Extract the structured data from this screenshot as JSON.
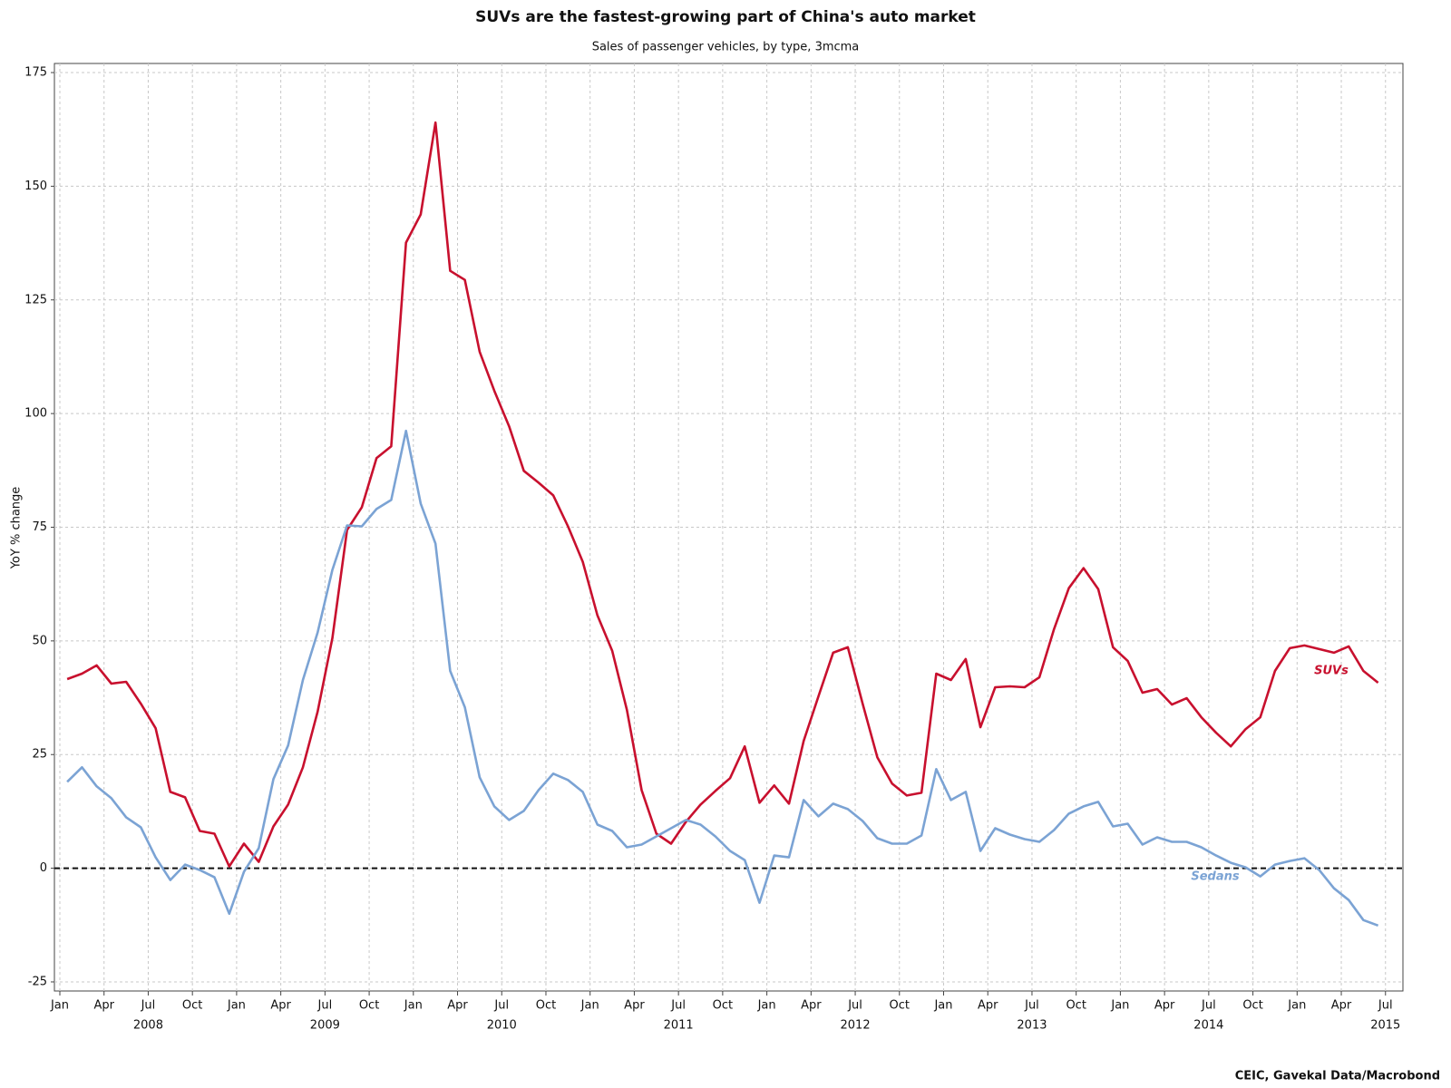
{
  "chart_data": {
    "type": "line",
    "title": "SUVs are the fastest-growing part of China's auto market",
    "subtitle": "Sales of passenger vehicles, by type, 3mcma",
    "y_label": "YoY % change",
    "source": "CEIC, Gavekal Data/Macrobond",
    "x": [
      "2008-01",
      "2008-02",
      "2008-03",
      "2008-04",
      "2008-05",
      "2008-06",
      "2008-07",
      "2008-08",
      "2008-09",
      "2008-10",
      "2008-11",
      "2008-12",
      "2009-01",
      "2009-02",
      "2009-03",
      "2009-04",
      "2009-05",
      "2009-06",
      "2009-07",
      "2009-08",
      "2009-09",
      "2009-10",
      "2009-11",
      "2009-12",
      "2010-01",
      "2010-02",
      "2010-03",
      "2010-04",
      "2010-05",
      "2010-06",
      "2010-07",
      "2010-08",
      "2010-09",
      "2010-10",
      "2010-11",
      "2010-12",
      "2011-01",
      "2011-02",
      "2011-03",
      "2011-04",
      "2011-05",
      "2011-06",
      "2011-07",
      "2011-08",
      "2011-09",
      "2011-10",
      "2011-11",
      "2011-12",
      "2012-01",
      "2012-02",
      "2012-03",
      "2012-04",
      "2012-05",
      "2012-06",
      "2012-07",
      "2012-08",
      "2012-09",
      "2012-10",
      "2012-11",
      "2012-12",
      "2013-01",
      "2013-02",
      "2013-03",
      "2013-04",
      "2013-05",
      "2013-06",
      "2013-07",
      "2013-08",
      "2013-09",
      "2013-10",
      "2013-11",
      "2013-12",
      "2014-01",
      "2014-02",
      "2014-03",
      "2014-04",
      "2014-05",
      "2014-06",
      "2014-07",
      "2014-08",
      "2014-09",
      "2014-10",
      "2014-11",
      "2014-12",
      "2015-01",
      "2015-02",
      "2015-03",
      "2015-04",
      "2015-05",
      "2015-06"
    ],
    "series": [
      {
        "name": "SUVs",
        "color": "#c8102e",
        "values": [
          41.6,
          42.8,
          44.6,
          40.6,
          41,
          36.2,
          30.8,
          16.8,
          15.6,
          8.2,
          7.6,
          0.4,
          5.4,
          1.4,
          9.2,
          14,
          22.2,
          34.4,
          50.6,
          74.4,
          79.4,
          90.2,
          92.8,
          137.6,
          143.8,
          164,
          131.4,
          129.4,
          113.6,
          105,
          97.2,
          87.4,
          84.8,
          82,
          75.2,
          67.4,
          55.6,
          47.8,
          34.8,
          17.2,
          7.6,
          5.4,
          10.2,
          14,
          17,
          19.8,
          26.8,
          14.4,
          18.2,
          14.2,
          28,
          37.8,
          47.4,
          48.6,
          36.2,
          24.4,
          18.6,
          16,
          16.6,
          42.8,
          41.4,
          46,
          31,
          39.8,
          40,
          39.8,
          42,
          52.6,
          61.6,
          66,
          61.4,
          48.6,
          45.6,
          38.6,
          39.4,
          36,
          37.4,
          33.2,
          29.8,
          26.8,
          30.6,
          33.2,
          43.4,
          48.4,
          49,
          48.2,
          47.4,
          48.8,
          43.4,
          40.8
        ]
      },
      {
        "name": "Sedans",
        "color": "#7ba3d4",
        "values": [
          19,
          22.2,
          18,
          15.4,
          11.2,
          9,
          2.4,
          -2.6,
          0.8,
          -0.4,
          -2,
          -10,
          -0.8,
          4.4,
          19.6,
          27,
          41.4,
          51.8,
          65.6,
          75.4,
          75.2,
          79,
          81,
          96.2,
          80.2,
          71.4,
          43.4,
          35.4,
          20,
          13.6,
          10.6,
          12.6,
          17.2,
          20.8,
          19.4,
          16.8,
          9.6,
          8.2,
          4.6,
          5.2,
          7,
          8.8,
          10.6,
          9.6,
          7,
          3.8,
          1.8,
          -7.6,
          2.8,
          2.4,
          15,
          11.4,
          14.2,
          13,
          10.4,
          6.6,
          5.4,
          5.4,
          7.2,
          21.8,
          15,
          16.8,
          3.8,
          8.8,
          7.4,
          6.4,
          5.8,
          8.4,
          12,
          13.6,
          14.6,
          9.2,
          9.8,
          5.2,
          6.8,
          5.8,
          5.8,
          4.6,
          2.8,
          1.2,
          0.2,
          -1.8,
          0.8,
          1.6,
          2.2,
          -0.4,
          -4.4,
          -7,
          -11.4,
          -12.6
        ]
      }
    ],
    "xlim": [
      "2008-01",
      "2015-08"
    ],
    "xticks": [
      {
        "value": "2008-01",
        "label": "Jan"
      },
      {
        "value": "2008-04",
        "label": "Apr"
      },
      {
        "value": "2008-07",
        "label": "Jul"
      },
      {
        "value": "2008-10",
        "label": "Oct"
      },
      {
        "value": "2009-01",
        "label": "Jan"
      },
      {
        "value": "2009-04",
        "label": "Apr"
      },
      {
        "value": "2009-07",
        "label": "Jul"
      },
      {
        "value": "2009-10",
        "label": "Oct"
      },
      {
        "value": "2010-01",
        "label": "Jan"
      },
      {
        "value": "2010-04",
        "label": "Apr"
      },
      {
        "value": "2010-07",
        "label": "Jul"
      },
      {
        "value": "2010-10",
        "label": "Oct"
      },
      {
        "value": "2011-01",
        "label": "Jan"
      },
      {
        "value": "2011-04",
        "label": "Apr"
      },
      {
        "value": "2011-07",
        "label": "Jul"
      },
      {
        "value": "2011-10",
        "label": "Oct"
      },
      {
        "value": "2012-01",
        "label": "Jan"
      },
      {
        "value": "2012-04",
        "label": "Apr"
      },
      {
        "value": "2012-07",
        "label": "Jul"
      },
      {
        "value": "2012-10",
        "label": "Oct"
      },
      {
        "value": "2013-01",
        "label": "Jan"
      },
      {
        "value": "2013-04",
        "label": "Apr"
      },
      {
        "value": "2013-07",
        "label": "Jul"
      },
      {
        "value": "2013-10",
        "label": "Oct"
      },
      {
        "value": "2014-01",
        "label": "Jan"
      },
      {
        "value": "2014-04",
        "label": "Apr"
      },
      {
        "value": "2014-07",
        "label": "Jul"
      },
      {
        "value": "2014-10",
        "label": "Oct"
      },
      {
        "value": "2015-01",
        "label": "Jan"
      },
      {
        "value": "2015-04",
        "label": "Apr"
      },
      {
        "value": "2015-07",
        "label": "Jul"
      }
    ],
    "year_labels": [
      {
        "value": "2008-07",
        "label": "2008"
      },
      {
        "value": "2009-07",
        "label": "2009"
      },
      {
        "value": "2010-07",
        "label": "2010"
      },
      {
        "value": "2011-07",
        "label": "2011"
      },
      {
        "value": "2012-07",
        "label": "2012"
      },
      {
        "value": "2013-07",
        "label": "2013"
      },
      {
        "value": "2014-07",
        "label": "2014"
      },
      {
        "value": "2015-07",
        "label": "2015"
      }
    ],
    "ylim": [
      -27,
      177
    ],
    "yticks": [
      -25,
      0,
      25,
      50,
      75,
      100,
      125,
      150,
      175
    ],
    "hline": 0,
    "grid": true
  }
}
